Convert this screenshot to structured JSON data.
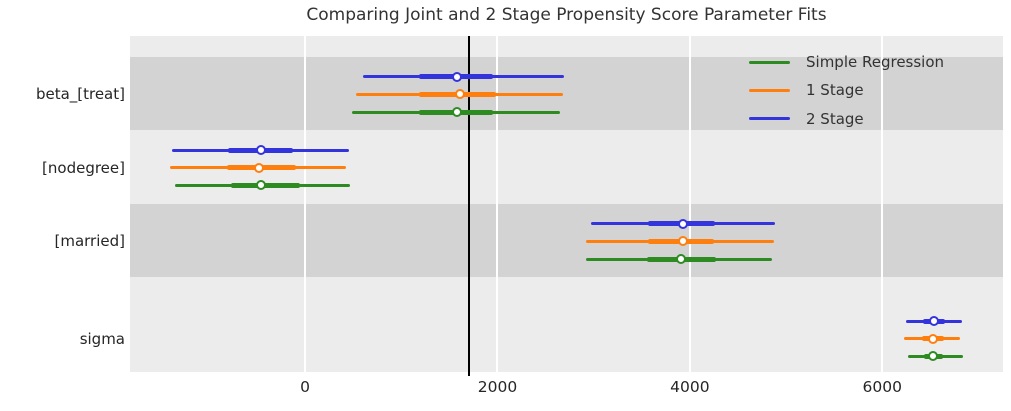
{
  "title": "Comparing Joint and 2 Stage Propensity Score Parameter Fits",
  "legend": {
    "entries": [
      {
        "label": "Simple Regression",
        "color": "#2e8b22"
      },
      {
        "label": "1 Stage",
        "color": "#ff7f0e"
      },
      {
        "label": "2 Stage",
        "color": "#3434dd"
      }
    ]
  },
  "chart_data": {
    "type": "forest",
    "title": "Comparing Joint and 2 Stage Propensity Score Parameter Fits",
    "categories": [
      "beta_[treat]",
      "[nodegree]",
      "[married]",
      "sigma"
    ],
    "series": [
      {
        "name": "2 Stage",
        "color": "#3434dd",
        "rows": [
          {
            "category": "beta_[treat]",
            "lo": 600,
            "q_lo": 1180,
            "median": 1575,
            "q_hi": 1955,
            "hi": 2690
          },
          {
            "category": "[nodegree]",
            "lo": -1380,
            "q_lo": -800,
            "median": -460,
            "q_hi": -130,
            "hi": 455
          },
          {
            "category": "[married]",
            "lo": 2970,
            "q_lo": 3565,
            "median": 3930,
            "q_hi": 4265,
            "hi": 4885
          },
          {
            "category": "sigma",
            "lo": 6245,
            "q_lo": 6425,
            "median": 6540,
            "q_hi": 6650,
            "hi": 6825
          }
        ]
      },
      {
        "name": "1 Stage",
        "color": "#ff7f0e",
        "rows": [
          {
            "category": "beta_[treat]",
            "lo": 530,
            "q_lo": 1180,
            "median": 1610,
            "q_hi": 1980,
            "hi": 2680
          },
          {
            "category": "[nodegree]",
            "lo": -1400,
            "q_lo": -810,
            "median": -480,
            "q_hi": -90,
            "hi": 430
          },
          {
            "category": "[married]",
            "lo": 2920,
            "q_lo": 3560,
            "median": 3930,
            "q_hi": 4250,
            "hi": 4870
          },
          {
            "category": "sigma",
            "lo": 6225,
            "q_lo": 6415,
            "median": 6530,
            "q_hi": 6640,
            "hi": 6810
          }
        ]
      },
      {
        "name": "Simple Regression",
        "color": "#2e8b22",
        "rows": [
          {
            "category": "beta_[treat]",
            "lo": 490,
            "q_lo": 1180,
            "median": 1575,
            "q_hi": 1955,
            "hi": 2655
          },
          {
            "category": "[nodegree]",
            "lo": -1355,
            "q_lo": -775,
            "median": -460,
            "q_hi": -55,
            "hi": 465
          },
          {
            "category": "[married]",
            "lo": 2925,
            "q_lo": 3550,
            "median": 3905,
            "q_hi": 4275,
            "hi": 4855
          },
          {
            "category": "sigma",
            "lo": 6270,
            "q_lo": 6430,
            "median": 6530,
            "q_hi": 6630,
            "hi": 6835
          }
        ]
      }
    ],
    "xticks": [
      0,
      2000,
      4000,
      6000
    ],
    "xlim": [
      -1820,
      7255
    ],
    "ref_line_x": 1700,
    "grid": "white-vertical-on-gray",
    "band_colors": {
      "light": "#ececec",
      "dark": "#d3d3d3"
    },
    "legend_position": "upper right"
  }
}
